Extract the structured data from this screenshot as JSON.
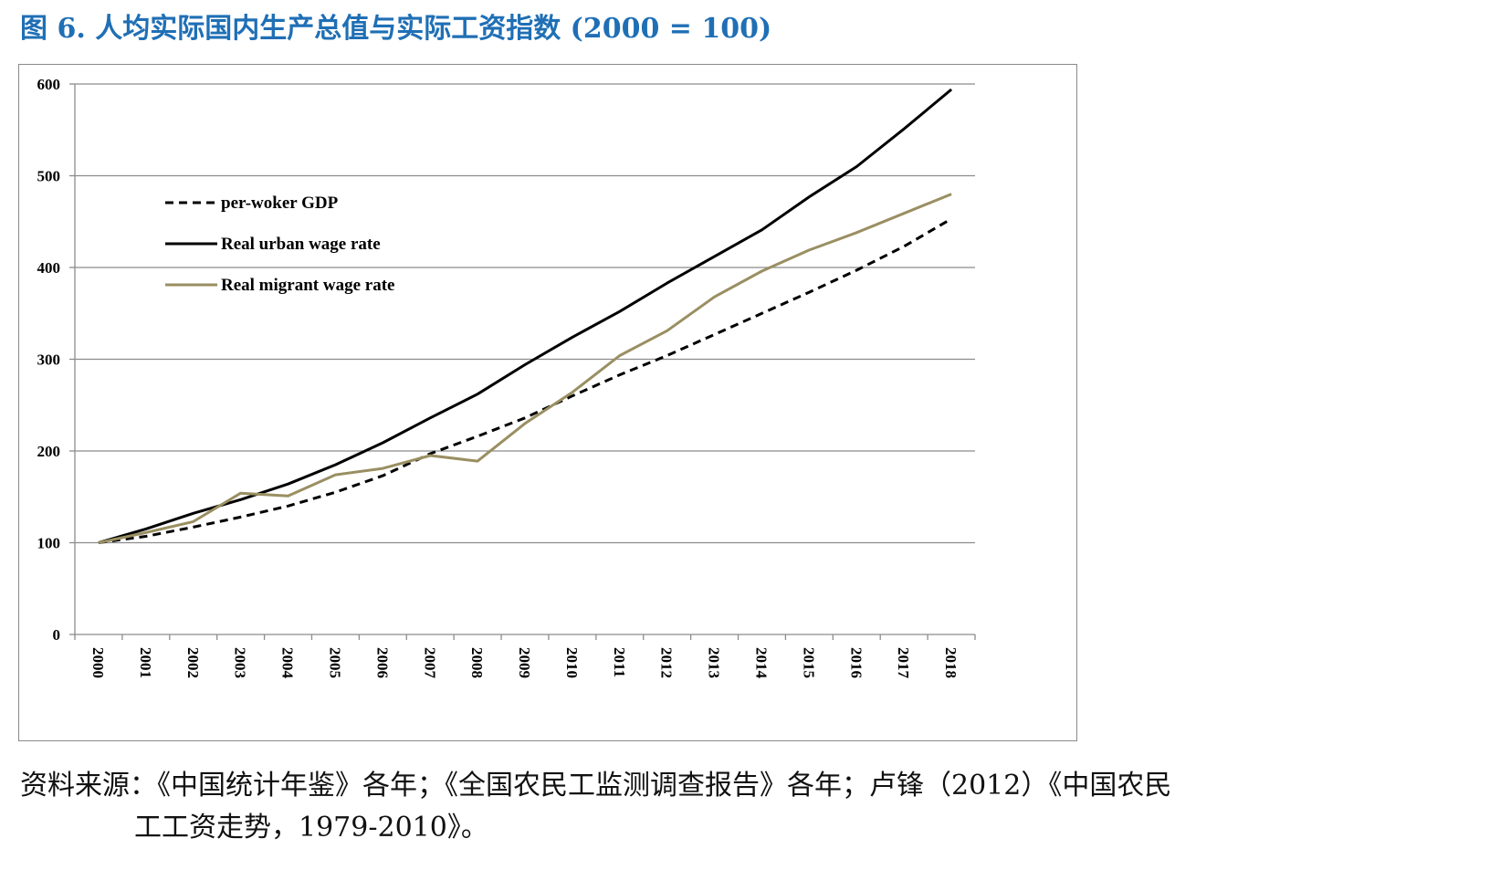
{
  "figure_title": "图 6. 人均实际国内生产总值与实际工资指数 (2000 = 100)",
  "source_note": {
    "line1": "资料来源：《中国统计年鉴》各年；《全国农民工监测调查报告》各年；卢锋（2012）《中国农民",
    "line2": "工工资走势，1979-2010》。"
  },
  "colors": {
    "title": "#1f6fb5",
    "grid": "#8c8c8c",
    "gdp": "#000000",
    "urban": "#000000",
    "migrant": "#9a8f62"
  },
  "chart_data": {
    "type": "line",
    "title": "",
    "xlabel": "",
    "ylabel": "",
    "ylim": [
      0,
      600
    ],
    "yticks": [
      0,
      100,
      200,
      300,
      400,
      500,
      600
    ],
    "grid": true,
    "legend_position": "top-left",
    "categories": [
      "2000",
      "2001",
      "2002",
      "2003",
      "2004",
      "2005",
      "2006",
      "2007",
      "2008",
      "2009",
      "2010",
      "2011",
      "2012",
      "2013",
      "2014",
      "2015",
      "2016",
      "2017",
      "2018"
    ],
    "series": [
      {
        "name": "per-woker GDP",
        "style": "dashed",
        "color": "#000000",
        "values": [
          100,
          107,
          117,
          128,
          140,
          155,
          173,
          197,
          216,
          236,
          260,
          283,
          304,
          327,
          350,
          373,
          397,
          423,
          453
        ]
      },
      {
        "name": "Real urban wage rate",
        "style": "solid",
        "color": "#000000",
        "values": [
          100,
          115,
          132,
          147,
          164,
          185,
          209,
          236,
          262,
          294,
          324,
          352,
          383,
          412,
          441,
          477,
          510,
          551,
          594
        ]
      },
      {
        "name": "Real migrant wage rate",
        "style": "solid",
        "color": "#9a8f62",
        "values": [
          100,
          111,
          123,
          154,
          151,
          174,
          181,
          195,
          189,
          230,
          264,
          304,
          331,
          368,
          396,
          419,
          438,
          459,
          480
        ]
      }
    ]
  }
}
